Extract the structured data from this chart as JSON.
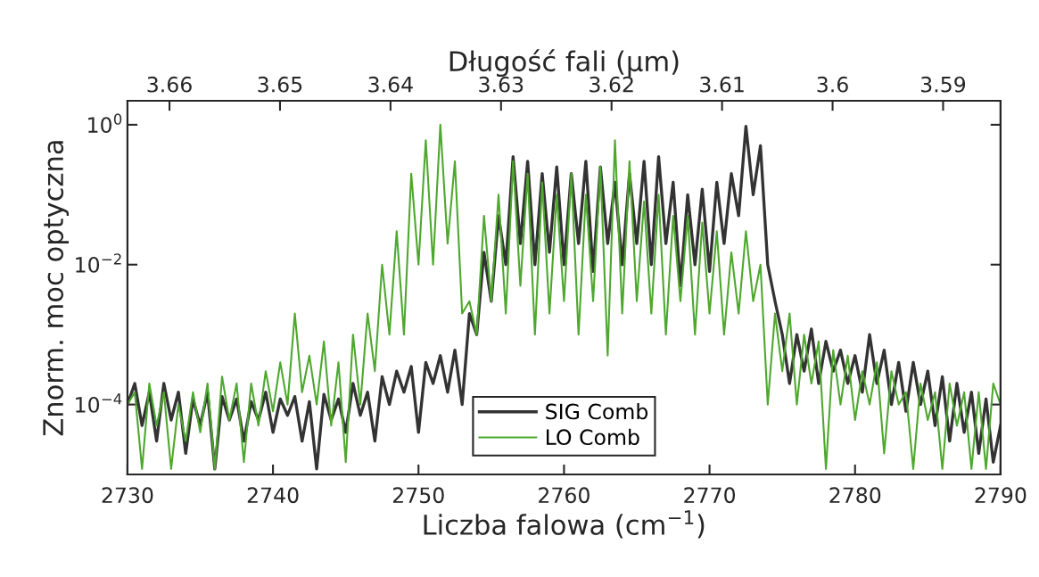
{
  "chart_data": {
    "type": "line",
    "xlabel": "Liczba falowa (cm$^{−1}$)",
    "ylabel": "Znorm. moc optyczna",
    "x2label": "Długość fali (μm)",
    "x": [
      2730,
      2730.5,
      2731,
      2731.5,
      2732,
      2732.5,
      2733,
      2733.5,
      2734,
      2734.5,
      2735,
      2735.5,
      2736,
      2736.5,
      2737,
      2737.5,
      2738,
      2738.5,
      2739,
      2739.5,
      2740,
      2740.5,
      2741,
      2741.5,
      2742,
      2742.5,
      2743,
      2743.5,
      2744,
      2744.5,
      2745,
      2745.5,
      2746,
      2746.5,
      2747,
      2747.5,
      2748,
      2748.5,
      2749,
      2749.5,
      2750,
      2750.5,
      2751,
      2751.5,
      2752,
      2752.5,
      2753,
      2753.5,
      2754,
      2754.5,
      2755,
      2755.5,
      2756,
      2756.5,
      2757,
      2757.5,
      2758,
      2758.5,
      2759,
      2759.5,
      2760,
      2760.5,
      2761,
      2761.5,
      2762,
      2762.5,
      2763,
      2763.5,
      2764,
      2764.5,
      2765,
      2765.5,
      2766,
      2766.5,
      2767,
      2767.5,
      2768,
      2768.5,
      2769,
      2769.5,
      2770,
      2770.5,
      2771,
      2771.5,
      2772,
      2772.5,
      2773,
      2773.5,
      2774,
      2774.5,
      2775,
      2775.5,
      2776,
      2776.5,
      2777,
      2777.5,
      2778,
      2778.5,
      2779,
      2779.5,
      2780,
      2780.5,
      2781,
      2781.5,
      2782,
      2782.5,
      2783,
      2783.5,
      2784,
      2784.5,
      2785,
      2785.5,
      2786,
      2786.5,
      2787,
      2787.5,
      2788,
      2788.5,
      2789,
      2789.5,
      2790
    ],
    "series": [
      {
        "name": "SIG Comb",
        "color": "#333333",
        "values": [
          0.0001,
          0.0002,
          5e-05,
          0.00015,
          3e-05,
          0.0002,
          6e-05,
          0.00015,
          2e-05,
          0.00012,
          5e-05,
          0.00015,
          1.2e-05,
          0.00013,
          6e-05,
          0.00012,
          3e-05,
          0.00011,
          6e-05,
          0.00015,
          4e-05,
          0.00012,
          7e-05,
          0.00013,
          3e-05,
          0.00011,
          1.2e-05,
          0.00014,
          6e-05,
          0.00012,
          4e-05,
          0.0002,
          7e-05,
          0.00015,
          3e-05,
          0.00025,
          0.0001,
          0.0003,
          0.00015,
          0.00035,
          4e-05,
          0.0004,
          0.0002,
          0.0005,
          0.00015,
          0.0006,
          0.0001,
          0.002,
          0.001,
          0.015,
          0.003,
          0.05,
          0.01,
          0.35,
          0.02,
          0.3,
          0.01,
          0.2,
          0.015,
          0.25,
          0.01,
          0.2,
          0.02,
          0.3,
          0.008,
          0.25,
          0.02,
          0.15,
          0.01,
          0.2,
          0.02,
          0.3,
          0.01,
          0.35,
          0.02,
          0.15,
          0.005,
          0.1,
          0.01,
          0.12,
          0.008,
          0.15,
          0.02,
          0.2,
          0.05,
          0.95,
          0.1,
          0.5,
          0.01,
          0.003,
          0.001,
          0.0002,
          0.001,
          0.0003,
          0.0012,
          0.0002,
          0.0008,
          0.0003,
          0.0006,
          0.0002,
          0.0005,
          0.00015,
          0.001,
          0.0002,
          0.0006,
          0.0001,
          0.0004,
          8e-05,
          0.0004,
          0.0001,
          0.0003,
          5e-05,
          0.00025,
          3e-05,
          0.0002,
          4e-05,
          0.00015,
          2e-05,
          0.00012,
          1.5e-05,
          5e-05
        ]
      },
      {
        "name": "LO Comb",
        "color": "#4ea72e",
        "values": [
          0.0001,
          0.00015,
          1.2e-05,
          0.0002,
          5e-05,
          0.00015,
          1.2e-05,
          0.0001,
          3e-05,
          0.00015,
          4e-05,
          0.0002,
          1.2e-05,
          0.00025,
          6e-05,
          0.0002,
          1.5e-05,
          0.0002,
          5e-05,
          0.0003,
          8e-05,
          0.0004,
          0.0001,
          0.002,
          0.00015,
          0.0005,
          0.0001,
          0.0008,
          5e-05,
          0.0004,
          1.5e-05,
          0.001,
          0.0001,
          0.002,
          0.0003,
          0.01,
          0.001,
          0.03,
          0.001,
          0.2,
          0.01,
          0.6,
          0.01,
          1.0,
          0.02,
          0.3,
          0.002,
          0.003,
          0.001,
          0.05,
          0.003,
          0.1,
          0.002,
          0.3,
          0.005,
          0.2,
          0.001,
          0.15,
          0.002,
          0.1,
          0.003,
          0.2,
          0.001,
          0.1,
          0.003,
          0.25,
          0.0005,
          0.6,
          0.002,
          0.3,
          0.003,
          0.08,
          0.002,
          0.1,
          0.001,
          0.05,
          0.003,
          0.05,
          0.001,
          0.04,
          0.002,
          0.03,
          0.001,
          0.015,
          0.002,
          0.03,
          0.003,
          0.01,
          0.0001,
          0.002,
          0.0003,
          0.002,
          0.0001,
          0.001,
          0.0002,
          0.0008,
          1.2e-05,
          0.0006,
          0.0001,
          0.0005,
          6e-05,
          0.0003,
          0.0001,
          0.0004,
          2e-05,
          0.0003,
          0.0001,
          0.00015,
          1.2e-05,
          0.0002,
          6e-05,
          0.00015,
          1.2e-05,
          0.0002,
          5e-05,
          0.00015,
          1.2e-05,
          0.00015,
          1.2e-05,
          0.0002,
          0.0001
        ]
      }
    ],
    "log": "y",
    "xlim": [
      2730,
      2790
    ],
    "xticks": [
      2730,
      2740,
      2750,
      2760,
      2770,
      2780,
      2790
    ],
    "ylim": [
      1e-05,
      2.2
    ],
    "yticks": [
      {
        "value": 1,
        "label": "10$^{0}$"
      },
      {
        "value": 0.01,
        "label": "10$^{−2}$"
      },
      {
        "value": 0.0001,
        "label": "10$^{−4}$"
      }
    ],
    "x2lim": [
      3.6638,
      3.5848
    ],
    "x2ticks": [
      3.66,
      3.65,
      3.64,
      3.63,
      3.62,
      3.61,
      3.6,
      3.59
    ],
    "grid": false,
    "legend": "bottom",
    "line_style": "solid",
    "marker": "none"
  }
}
